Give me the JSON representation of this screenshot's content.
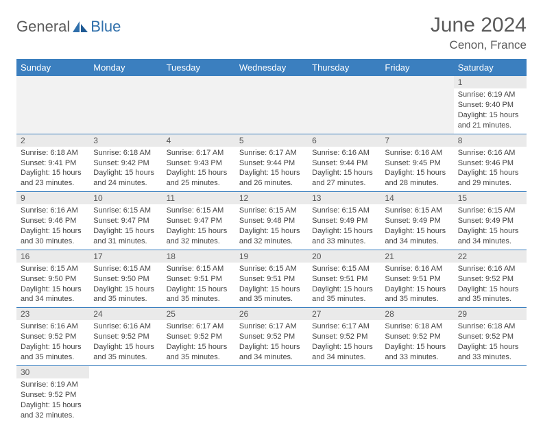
{
  "logo": {
    "text1": "General",
    "text2": "Blue"
  },
  "header": {
    "month": "June 2024",
    "location": "Cenon, France"
  },
  "colors": {
    "header_bg": "#3b7fbf",
    "header_text": "#ffffff",
    "daynum_bg": "#eaeaea",
    "border": "#3b7fbf",
    "logo_gray": "#5a5a5a",
    "logo_blue": "#2f6fab"
  },
  "weekdays": [
    "Sunday",
    "Monday",
    "Tuesday",
    "Wednesday",
    "Thursday",
    "Friday",
    "Saturday"
  ],
  "weeks": [
    [
      null,
      null,
      null,
      null,
      null,
      null,
      {
        "d": "1",
        "sr": "Sunrise: 6:19 AM",
        "ss": "Sunset: 9:40 PM",
        "dl": "Daylight: 15 hours and 21 minutes."
      }
    ],
    [
      {
        "d": "2",
        "sr": "Sunrise: 6:18 AM",
        "ss": "Sunset: 9:41 PM",
        "dl": "Daylight: 15 hours and 23 minutes."
      },
      {
        "d": "3",
        "sr": "Sunrise: 6:18 AM",
        "ss": "Sunset: 9:42 PM",
        "dl": "Daylight: 15 hours and 24 minutes."
      },
      {
        "d": "4",
        "sr": "Sunrise: 6:17 AM",
        "ss": "Sunset: 9:43 PM",
        "dl": "Daylight: 15 hours and 25 minutes."
      },
      {
        "d": "5",
        "sr": "Sunrise: 6:17 AM",
        "ss": "Sunset: 9:44 PM",
        "dl": "Daylight: 15 hours and 26 minutes."
      },
      {
        "d": "6",
        "sr": "Sunrise: 6:16 AM",
        "ss": "Sunset: 9:44 PM",
        "dl": "Daylight: 15 hours and 27 minutes."
      },
      {
        "d": "7",
        "sr": "Sunrise: 6:16 AM",
        "ss": "Sunset: 9:45 PM",
        "dl": "Daylight: 15 hours and 28 minutes."
      },
      {
        "d": "8",
        "sr": "Sunrise: 6:16 AM",
        "ss": "Sunset: 9:46 PM",
        "dl": "Daylight: 15 hours and 29 minutes."
      }
    ],
    [
      {
        "d": "9",
        "sr": "Sunrise: 6:16 AM",
        "ss": "Sunset: 9:46 PM",
        "dl": "Daylight: 15 hours and 30 minutes."
      },
      {
        "d": "10",
        "sr": "Sunrise: 6:15 AM",
        "ss": "Sunset: 9:47 PM",
        "dl": "Daylight: 15 hours and 31 minutes."
      },
      {
        "d": "11",
        "sr": "Sunrise: 6:15 AM",
        "ss": "Sunset: 9:47 PM",
        "dl": "Daylight: 15 hours and 32 minutes."
      },
      {
        "d": "12",
        "sr": "Sunrise: 6:15 AM",
        "ss": "Sunset: 9:48 PM",
        "dl": "Daylight: 15 hours and 32 minutes."
      },
      {
        "d": "13",
        "sr": "Sunrise: 6:15 AM",
        "ss": "Sunset: 9:49 PM",
        "dl": "Daylight: 15 hours and 33 minutes."
      },
      {
        "d": "14",
        "sr": "Sunrise: 6:15 AM",
        "ss": "Sunset: 9:49 PM",
        "dl": "Daylight: 15 hours and 34 minutes."
      },
      {
        "d": "15",
        "sr": "Sunrise: 6:15 AM",
        "ss": "Sunset: 9:49 PM",
        "dl": "Daylight: 15 hours and 34 minutes."
      }
    ],
    [
      {
        "d": "16",
        "sr": "Sunrise: 6:15 AM",
        "ss": "Sunset: 9:50 PM",
        "dl": "Daylight: 15 hours and 34 minutes."
      },
      {
        "d": "17",
        "sr": "Sunrise: 6:15 AM",
        "ss": "Sunset: 9:50 PM",
        "dl": "Daylight: 15 hours and 35 minutes."
      },
      {
        "d": "18",
        "sr": "Sunrise: 6:15 AM",
        "ss": "Sunset: 9:51 PM",
        "dl": "Daylight: 15 hours and 35 minutes."
      },
      {
        "d": "19",
        "sr": "Sunrise: 6:15 AM",
        "ss": "Sunset: 9:51 PM",
        "dl": "Daylight: 15 hours and 35 minutes."
      },
      {
        "d": "20",
        "sr": "Sunrise: 6:15 AM",
        "ss": "Sunset: 9:51 PM",
        "dl": "Daylight: 15 hours and 35 minutes."
      },
      {
        "d": "21",
        "sr": "Sunrise: 6:16 AM",
        "ss": "Sunset: 9:51 PM",
        "dl": "Daylight: 15 hours and 35 minutes."
      },
      {
        "d": "22",
        "sr": "Sunrise: 6:16 AM",
        "ss": "Sunset: 9:52 PM",
        "dl": "Daylight: 15 hours and 35 minutes."
      }
    ],
    [
      {
        "d": "23",
        "sr": "Sunrise: 6:16 AM",
        "ss": "Sunset: 9:52 PM",
        "dl": "Daylight: 15 hours and 35 minutes."
      },
      {
        "d": "24",
        "sr": "Sunrise: 6:16 AM",
        "ss": "Sunset: 9:52 PM",
        "dl": "Daylight: 15 hours and 35 minutes."
      },
      {
        "d": "25",
        "sr": "Sunrise: 6:17 AM",
        "ss": "Sunset: 9:52 PM",
        "dl": "Daylight: 15 hours and 35 minutes."
      },
      {
        "d": "26",
        "sr": "Sunrise: 6:17 AM",
        "ss": "Sunset: 9:52 PM",
        "dl": "Daylight: 15 hours and 34 minutes."
      },
      {
        "d": "27",
        "sr": "Sunrise: 6:17 AM",
        "ss": "Sunset: 9:52 PM",
        "dl": "Daylight: 15 hours and 34 minutes."
      },
      {
        "d": "28",
        "sr": "Sunrise: 6:18 AM",
        "ss": "Sunset: 9:52 PM",
        "dl": "Daylight: 15 hours and 33 minutes."
      },
      {
        "d": "29",
        "sr": "Sunrise: 6:18 AM",
        "ss": "Sunset: 9:52 PM",
        "dl": "Daylight: 15 hours and 33 minutes."
      }
    ],
    [
      {
        "d": "30",
        "sr": "Sunrise: 6:19 AM",
        "ss": "Sunset: 9:52 PM",
        "dl": "Daylight: 15 hours and 32 minutes."
      },
      null,
      null,
      null,
      null,
      null,
      null
    ]
  ]
}
